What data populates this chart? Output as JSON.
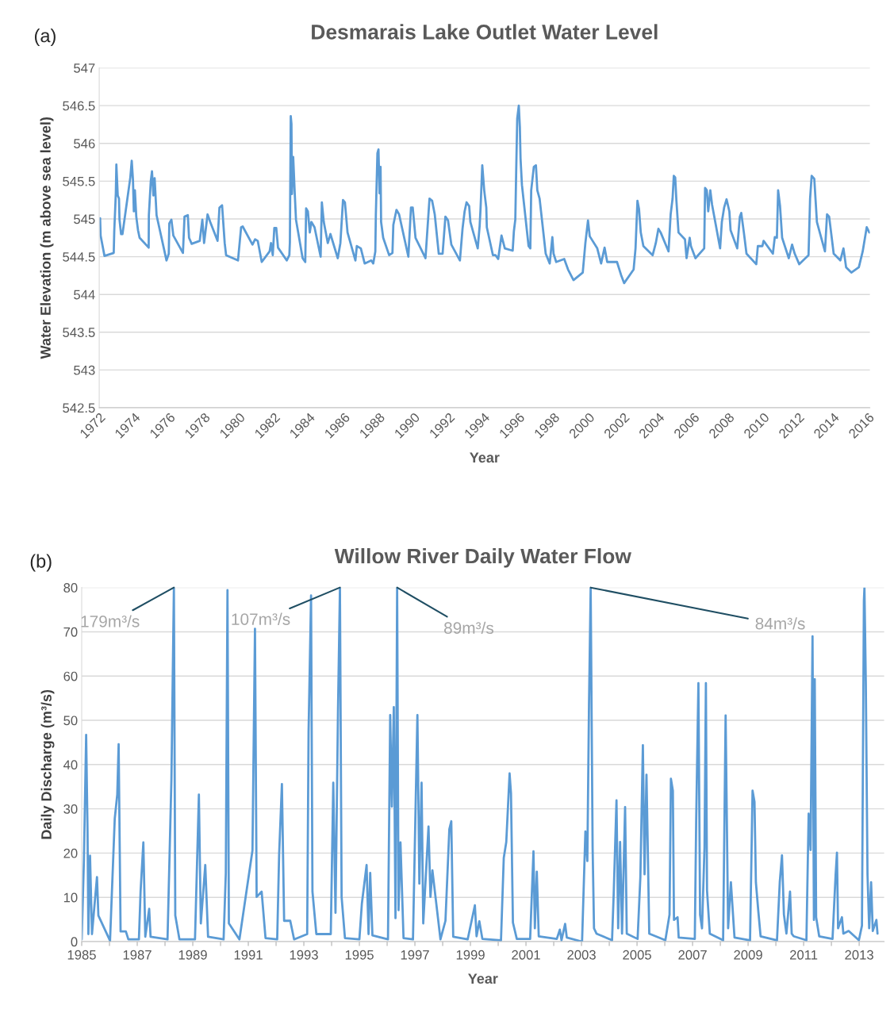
{
  "chart_data": [
    {
      "type": "line",
      "title": "Desmarais Lake Outlet Water Level",
      "xlabel": "Year",
      "ylabel": "Water Elevation (m above sea level)",
      "annotations": [
        "(a)"
      ],
      "xlim": [
        1972,
        2016.1
      ],
      "xticks": [
        1972,
        1974,
        1976,
        1978,
        1980,
        1982,
        1984,
        1986,
        1988,
        1990,
        1992,
        1994,
        1996,
        1998,
        2000,
        2002,
        2004,
        2006,
        2008,
        2010,
        2012,
        2014,
        2016
      ],
      "ylim": [
        542.5,
        547
      ],
      "yticks": [
        542.5,
        543,
        543.5,
        544,
        544.5,
        545,
        545.5,
        546,
        546.5,
        547
      ],
      "grid": "y",
      "series": [
        {
          "color": "#5b9bd5",
          "x": [
            1972.05,
            1972.08,
            1972.3,
            1972.83,
            1972.86,
            1972.95,
            1972.98,
            1973.06,
            1973.13,
            1973.16,
            1973.25,
            1973.33,
            1973.78,
            1973.86,
            1973.93,
            1973.98,
            1974.04,
            1974.12,
            1974.22,
            1974.31,
            1974.83,
            1974.84,
            1974.95,
            1975.02,
            1975.1,
            1975.17,
            1975.28,
            1975.85,
            1975.98,
            1976.01,
            1976.13,
            1976.24,
            1976.79,
            1976.88,
            1977.07,
            1977.14,
            1977.29,
            1977.75,
            1977.9,
            1978.0,
            1978.2,
            1978.35,
            1978.77,
            1978.88,
            1979.03,
            1979.18,
            1979.26,
            1979.94,
            1980.12,
            1980.21,
            1980.77,
            1980.92,
            1981.07,
            1981.3,
            1981.75,
            1981.83,
            1981.93,
            1982.02,
            1982.13,
            1982.23,
            1982.73,
            1982.88,
            1982.91,
            1982.96,
            1983.0,
            1983.03,
            1983.1,
            1983.19,
            1983.26,
            1983.64,
            1983.79,
            1983.84,
            1983.94,
            1984.05,
            1984.14,
            1984.32,
            1984.67,
            1984.74,
            1984.85,
            1985.08,
            1985.23,
            1985.65,
            1985.8,
            1985.95,
            1986.06,
            1986.21,
            1986.66,
            1986.74,
            1986.97,
            1987.19,
            1987.57,
            1987.68,
            1987.8,
            1987.83,
            1987.92,
            1987.98,
            1988.04,
            1988.1,
            1988.13,
            1988.25,
            1988.59,
            1988.78,
            1988.83,
            1989.01,
            1989.16,
            1989.69,
            1989.84,
            1989.94,
            1990.1,
            1990.67,
            1990.9,
            1991.05,
            1991.2,
            1991.43,
            1991.65,
            1991.81,
            1991.96,
            1992.15,
            1992.64,
            1992.79,
            1992.91,
            1993.02,
            1993.17,
            1993.24,
            1993.66,
            1993.77,
            1993.82,
            1993.92,
            1994.03,
            1994.15,
            1994.18,
            1994.53,
            1994.68,
            1994.83,
            1995.02,
            1995.21,
            1995.66,
            1995.73,
            1995.81,
            1995.86,
            1995.92,
            1996.01,
            1996.07,
            1996.11,
            1996.19,
            1996.57,
            1996.67,
            1996.72,
            1996.87,
            1996.99,
            1997.07,
            1997.2,
            1997.55,
            1997.78,
            1997.93,
            1998.0,
            1998.15,
            1998.61,
            1998.83,
            1999.14,
            1999.67,
            1999.82,
            1999.97,
            2000.07,
            2000.5,
            2000.72,
            2000.92,
            2001.07,
            2001.63,
            2001.86,
            2002.04,
            2002.58,
            2002.69,
            2002.8,
            2002.89,
            2002.99,
            2003.14,
            2003.67,
            2003.85,
            2004.0,
            2004.13,
            2004.58,
            2004.7,
            2004.81,
            2004.88,
            2004.96,
            2005.03,
            2005.15,
            2005.52,
            2005.61,
            2005.79,
            2005.86,
            2006.12,
            2006.62,
            2006.67,
            2006.77,
            2006.85,
            2006.97,
            2007.07,
            2007.53,
            2007.63,
            2007.76,
            2007.9,
            2008.06,
            2008.13,
            2008.51,
            2008.66,
            2008.74,
            2008.89,
            2009.04,
            2009.6,
            2009.69,
            2009.95,
            2010.02,
            2010.55,
            2010.66,
            2010.78,
            2010.85,
            2010.96,
            2011.08,
            2011.46,
            2011.65,
            2011.8,
            2012.06,
            2012.59,
            2012.68,
            2012.77,
            2012.92,
            2013.07,
            2013.53,
            2013.65,
            2013.77,
            2014.03,
            2014.41,
            2014.59,
            2014.74,
            2015.04,
            2015.47,
            2015.69,
            2015.92,
            2016.07
          ],
          "values": [
            545.01,
            544.78,
            544.51,
            544.55,
            544.84,
            545.34,
            545.72,
            545.31,
            545.27,
            544.99,
            544.8,
            544.8,
            545.55,
            545.77,
            545.52,
            545.1,
            545.38,
            545.03,
            544.85,
            544.75,
            544.62,
            545.05,
            545.5,
            545.63,
            545.31,
            545.54,
            545.05,
            544.45,
            544.54,
            544.94,
            544.99,
            544.78,
            544.55,
            545.03,
            545.05,
            544.75,
            544.67,
            544.71,
            544.99,
            544.68,
            545.06,
            544.96,
            544.71,
            545.15,
            545.18,
            544.68,
            544.52,
            544.45,
            544.89,
            544.9,
            544.66,
            544.73,
            544.71,
            544.43,
            544.57,
            544.68,
            544.52,
            544.88,
            544.88,
            544.62,
            544.45,
            544.52,
            544.69,
            546.36,
            546.26,
            545.33,
            545.82,
            545.33,
            544.99,
            544.48,
            544.43,
            545.14,
            545.1,
            544.82,
            544.96,
            544.89,
            544.5,
            545.22,
            544.96,
            544.68,
            544.8,
            544.48,
            544.68,
            545.25,
            545.22,
            544.82,
            544.45,
            544.64,
            544.61,
            544.41,
            544.45,
            544.41,
            544.57,
            545.06,
            545.87,
            545.92,
            545.34,
            545.69,
            544.96,
            544.75,
            544.52,
            544.55,
            544.92,
            545.12,
            545.06,
            544.5,
            545.15,
            545.15,
            544.75,
            544.48,
            545.27,
            545.24,
            545.06,
            544.54,
            544.54,
            545.03,
            544.98,
            544.66,
            544.45,
            544.87,
            545.1,
            545.22,
            545.17,
            544.96,
            544.61,
            544.91,
            545.13,
            545.71,
            545.38,
            545.15,
            544.89,
            544.52,
            544.52,
            544.47,
            544.78,
            544.61,
            544.58,
            544.84,
            544.99,
            545.62,
            546.33,
            546.5,
            546.22,
            545.8,
            545.45,
            544.64,
            544.61,
            545.38,
            545.69,
            545.71,
            545.38,
            545.27,
            544.54,
            544.41,
            544.76,
            544.54,
            544.43,
            544.47,
            544.33,
            544.19,
            544.29,
            544.68,
            544.98,
            544.77,
            544.61,
            544.41,
            544.62,
            544.43,
            544.43,
            544.26,
            544.15,
            544.33,
            544.61,
            545.24,
            545.13,
            544.82,
            544.64,
            544.52,
            544.68,
            544.87,
            544.82,
            544.57,
            545.06,
            545.27,
            545.57,
            545.55,
            545.24,
            544.82,
            544.73,
            544.48,
            544.75,
            544.64,
            544.48,
            544.61,
            545.41,
            545.38,
            545.1,
            545.38,
            545.19,
            544.61,
            544.96,
            545.15,
            545.26,
            545.1,
            544.85,
            544.61,
            545.03,
            545.08,
            544.82,
            544.54,
            544.4,
            544.64,
            544.64,
            544.71,
            544.54,
            544.76,
            544.75,
            545.38,
            545.17,
            544.75,
            544.48,
            544.66,
            544.54,
            544.4,
            544.52,
            545.27,
            545.57,
            545.53,
            544.96,
            544.57,
            545.06,
            545.03,
            544.54,
            544.45,
            544.61,
            544.36,
            544.29,
            544.36,
            544.57,
            544.89,
            544.82
          ]
        }
      ]
    },
    {
      "type": "line",
      "title": "Willow River Daily Water Flow",
      "xlabel": "Year",
      "ylabel": "Daily Discharge (m³/s)",
      "annotations": [
        "(b)",
        {
          "text": "179m³/s",
          "x": 1988.32,
          "y": 80
        },
        {
          "text": "107m³/s",
          "x": 1994.3,
          "y": 80
        },
        {
          "text": "89m³/s",
          "x": 1996.36,
          "y": 80
        },
        {
          "text": "84m³/s",
          "x": 2003.33,
          "y": 80
        }
      ],
      "xlim": [
        1985,
        2013.9
      ],
      "xticks": [
        1985,
        {
          "value": 1986,
          "label": null
        },
        1987,
        {
          "value": 1988,
          "label": null
        },
        1989,
        {
          "value": 1990,
          "label": null
        },
        1991,
        {
          "value": 1992,
          "label": null
        },
        1993,
        {
          "value": 1994,
          "label": null
        },
        1995,
        {
          "value": 1996,
          "label": null
        },
        1997,
        {
          "value": 1998,
          "label": null
        },
        1999,
        {
          "value": 2000,
          "label": null
        },
        2001,
        {
          "value": 2002,
          "label": null
        },
        2003,
        {
          "value": 2004,
          "label": null
        },
        2005,
        {
          "value": 2006,
          "label": null
        },
        2007,
        {
          "value": 2008,
          "label": null
        },
        2009,
        {
          "value": 2010,
          "label": null
        },
        2011,
        {
          "value": 2012,
          "label": null
        },
        2013
      ],
      "ylim": [
        0,
        80
      ],
      "yticks": [
        0,
        10,
        20,
        30,
        40,
        50,
        60,
        70,
        80
      ],
      "grid": "y",
      "series": [
        {
          "color": "#5b9bd5",
          "x": [
            1985.0,
            1985.08,
            1985.16,
            1985.21,
            1985.24,
            1985.3,
            1985.37,
            1985.55,
            1985.6,
            1986.02,
            1986.19,
            1986.28,
            1986.33,
            1986.4,
            1986.59,
            1986.68,
            1987.06,
            1987.12,
            1987.22,
            1987.29,
            1987.43,
            1987.48,
            1988.09,
            1988.23,
            1988.32,
            1988.37,
            1988.52,
            1989.08,
            1989.22,
            1989.29,
            1989.45,
            1989.55,
            1990.11,
            1990.19,
            1990.25,
            1990.3,
            1990.68,
            1991.15,
            1991.24,
            1991.3,
            1991.48,
            1991.62,
            1992.04,
            1992.11,
            1992.21,
            1992.29,
            1992.51,
            1992.65,
            1993.12,
            1993.17,
            1993.26,
            1993.31,
            1993.45,
            1993.97,
            1994.06,
            1994.14,
            1994.23,
            1994.3,
            1994.36,
            1994.48,
            1995.0,
            1995.09,
            1995.26,
            1995.33,
            1995.39,
            1995.47,
            1996.03,
            1996.11,
            1996.17,
            1996.24,
            1996.3,
            1996.36,
            1996.41,
            1996.48,
            1996.59,
            1996.93,
            1997.09,
            1997.16,
            1997.24,
            1997.3,
            1997.49,
            1997.56,
            1997.63,
            1997.92,
            1998.1,
            1998.24,
            1998.31,
            1998.38,
            1998.9,
            1999.16,
            1999.22,
            1999.32,
            1999.43,
            2000.1,
            2000.2,
            2000.29,
            2000.41,
            2000.46,
            2000.53,
            2000.67,
            2001.15,
            2001.27,
            2001.32,
            2001.39,
            2001.46,
            2002.11,
            2002.22,
            2002.28,
            2002.41,
            2002.47,
            2003.02,
            2003.14,
            2003.21,
            2003.27,
            2003.33,
            2003.4,
            2003.45,
            2003.54,
            2004.1,
            2004.16,
            2004.26,
            2004.32,
            2004.39,
            2004.46,
            2004.57,
            2004.63,
            2005.02,
            2005.12,
            2005.21,
            2005.27,
            2005.34,
            2005.44,
            2006.02,
            2006.17,
            2006.22,
            2006.29,
            2006.33,
            2006.46,
            2006.5,
            2007.08,
            2007.13,
            2007.21,
            2007.27,
            2007.34,
            2007.43,
            2007.48,
            2007.52,
            2007.62,
            2008.1,
            2008.19,
            2008.24,
            2008.28,
            2008.38,
            2008.51,
            2009.07,
            2009.16,
            2009.23,
            2009.28,
            2009.37,
            2009.45,
            2010.04,
            2010.14,
            2010.22,
            2010.29,
            2010.38,
            2010.51,
            2010.57,
            2010.64,
            2011.1,
            2011.18,
            2011.25,
            2011.32,
            2011.37,
            2011.4,
            2011.45,
            2011.56,
            2012.04,
            2012.15,
            2012.2,
            2012.24,
            2012.38,
            2012.43,
            2012.62,
            2012.99,
            2013.1,
            2013.17,
            2013.19,
            2013.24,
            2013.3,
            2013.36,
            2013.43,
            2013.49,
            2013.62,
            2013.66
          ],
          "values": [
            0.5,
            18.5,
            46.7,
            25,
            1.7,
            19.4,
            1.7,
            14.6,
            5.9,
            0.2,
            27.8,
            33.2,
            44.6,
            2.3,
            2.3,
            0.5,
            0.5,
            11.3,
            22.4,
            1.1,
            7.4,
            1.1,
            0.5,
            36.5,
            80,
            5.9,
            0.5,
            0.5,
            33.2,
            4.1,
            17.3,
            1.1,
            0.5,
            15.5,
            79.4,
            4.1,
            0.5,
            20.6,
            70.7,
            10.1,
            11.3,
            0.8,
            0.5,
            19.7,
            35.6,
            4.7,
            4.7,
            0.5,
            1.7,
            47.3,
            78.2,
            11.3,
            1.7,
            1.7,
            35.9,
            6.5,
            52.1,
            80,
            10.1,
            0.8,
            0.5,
            8.6,
            17.3,
            1.7,
            15.5,
            1.4,
            0.5,
            51.2,
            30.5,
            53.0,
            5.3,
            80,
            7.1,
            22.4,
            0.8,
            0.5,
            51.2,
            13.1,
            35.9,
            4.1,
            26.0,
            10.1,
            16.1,
            0.5,
            4.7,
            25.4,
            27.2,
            1.1,
            0.5,
            8.2,
            1.2,
            4.6,
            0.6,
            0.3,
            18.9,
            22.5,
            38.0,
            33.5,
            4.3,
            0.6,
            0.6,
            20.4,
            3.0,
            15.8,
            1.2,
            0.6,
            2.7,
            0.3,
            4.0,
            0.9,
            0,
            24.9,
            18.2,
            53.8,
            80,
            21.3,
            3.0,
            1.8,
            0.3,
            10.9,
            31.9,
            3.0,
            22.5,
            1.8,
            30.4,
            1.8,
            0.6,
            14.6,
            44.4,
            15.2,
            37.7,
            1.8,
            0.3,
            6.1,
            36.8,
            34.1,
            4.9,
            5.5,
            0.9,
            0.6,
            27.4,
            58.4,
            6.1,
            3.0,
            21.3,
            58.4,
            11.6,
            1.8,
            0.3,
            51.1,
            24.3,
            3.0,
            13.4,
            0.9,
            0.3,
            34.1,
            31.6,
            13.4,
            6.7,
            1.2,
            0.3,
            13.4,
            19.5,
            6.1,
            1.8,
            11.3,
            1.8,
            1.2,
            0.3,
            28.9,
            20.7,
            69.0,
            4.9,
            59.3,
            5.5,
            1.2,
            0.6,
            14.9,
            20.1,
            3.0,
            5.5,
            1.8,
            2.4,
            0.3,
            3.6,
            77.0,
            80,
            58.1,
            15.2,
            3.0,
            13.4,
            2.4,
            4.9,
            1.8
          ]
        }
      ]
    }
  ]
}
